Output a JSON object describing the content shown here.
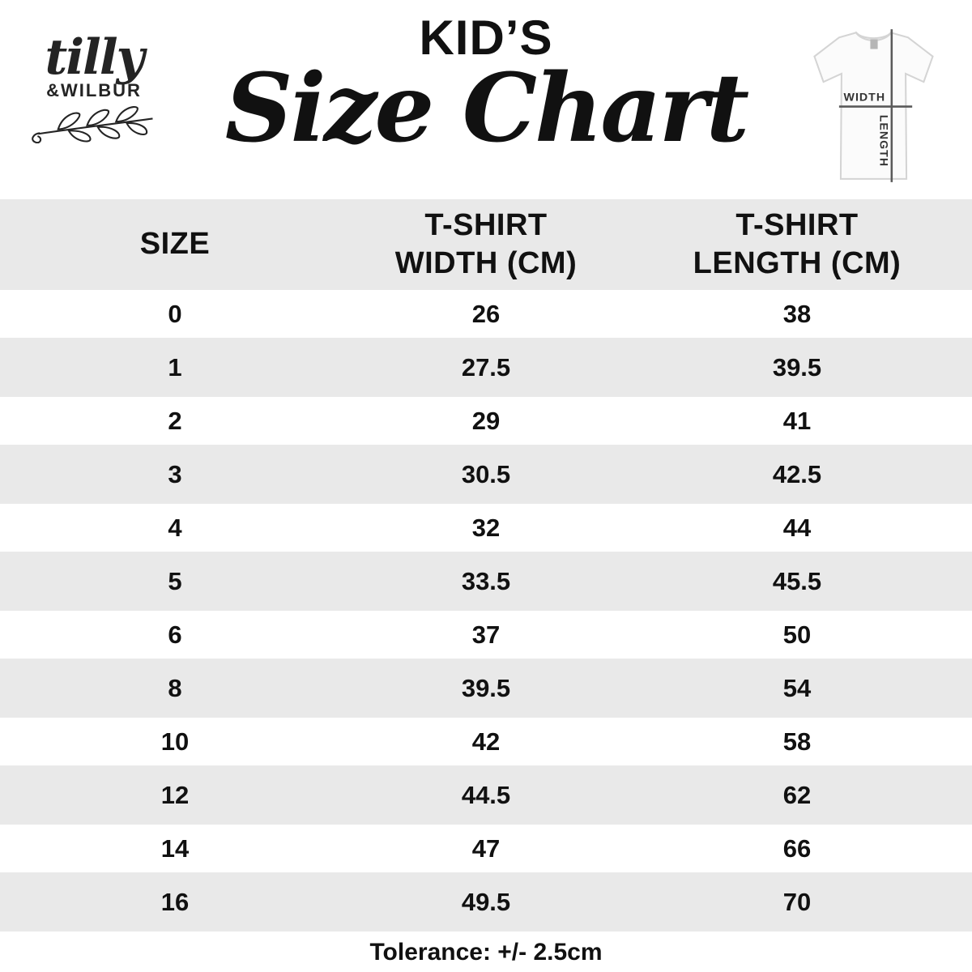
{
  "chart_data": {
    "type": "table",
    "title": "KID’S Size Chart",
    "columns": [
      "SIZE",
      "T-SHIRT WIDTH (CM)",
      "T-SHIRT LENGTH (CM)"
    ],
    "rows": [
      [
        "0",
        "26",
        "38"
      ],
      [
        "1",
        "27.5",
        "39.5"
      ],
      [
        "2",
        "29",
        "41"
      ],
      [
        "3",
        "30.5",
        "42.5"
      ],
      [
        "4",
        "32",
        "44"
      ],
      [
        "5",
        "33.5",
        "45.5"
      ],
      [
        "6",
        "37",
        "50"
      ],
      [
        "8",
        "39.5",
        "54"
      ],
      [
        "10",
        "42",
        "58"
      ],
      [
        "12",
        "44.5",
        "62"
      ],
      [
        "14",
        "47",
        "66"
      ],
      [
        "16",
        "49.5",
        "70"
      ]
    ],
    "footnote": "Tolerance: +/- 2.5cm"
  },
  "brand": {
    "script": "tilly",
    "caps": "&WILBUR"
  },
  "title": {
    "kicker": "KID’S",
    "main": "Size Chart"
  },
  "shirt_diagram": {
    "width_label": "WIDTH",
    "length_label": "LENGTH"
  },
  "colors": {
    "row_alt": "#e9e9e9",
    "text": "#111111",
    "measure_line": "#5a5a5a"
  }
}
